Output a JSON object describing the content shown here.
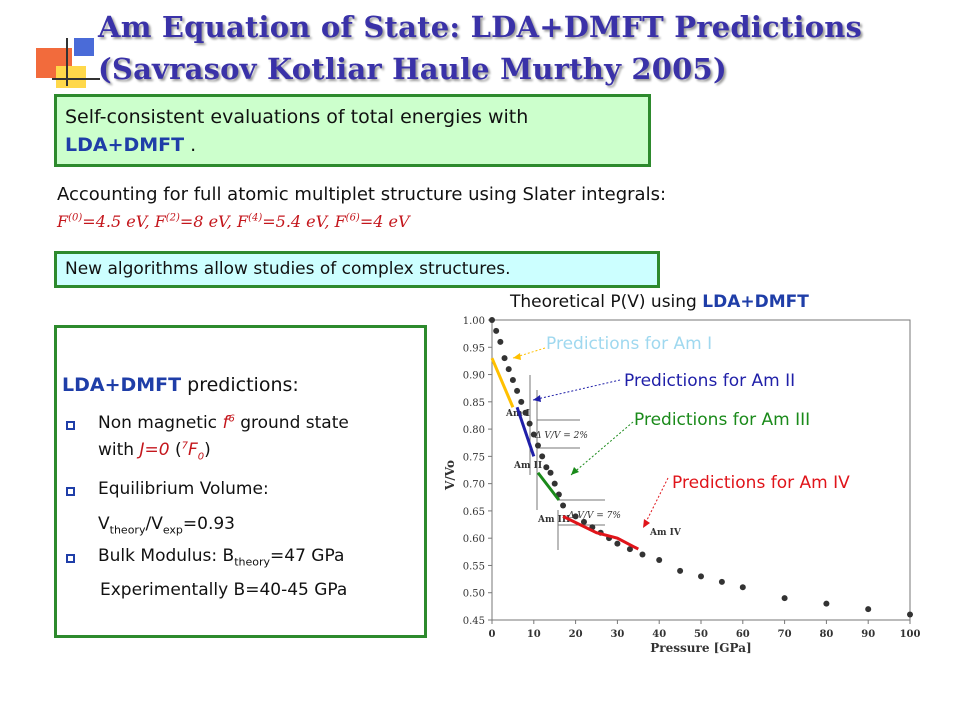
{
  "header": {
    "title_line1": "Am Equation of State: LDA+DMFT Predictions",
    "title_line2": "(Savrasov Kotliar Haule Murthy 2005)"
  },
  "box1": {
    "text": "Self-consistent evaluations of total energies with",
    "bold": "LDA+DMFT",
    "tail": " ."
  },
  "accounting": {
    "text": "Accounting for full atomic multiplet structure using Slater integrals:",
    "f0_sup": "(0)",
    "f0_val": "=4.5 eV, F",
    "f2_sup": "(2)",
    "f2_val": "=8 eV, F",
    "f4_sup": "(4)",
    "f4_val": "=5.4 eV, F",
    "f6_sup": "(6)",
    "f6_val": "=4 eV"
  },
  "box2": {
    "text": "New algorithms allow studies of complex structures."
  },
  "predictions": {
    "heading_bold": "LDA+DMFT",
    "heading_rest": " predictions:",
    "b1_a": "Non magnetic ",
    "b1_f": "f",
    "b1_f_sup": "6",
    "b1_b": " ground state",
    "b1_line2_a": "with ",
    "b1_j": "J=0",
    "b1_paren_open": " (",
    "b1_sup7": "7",
    "b1_F": "F",
    "b1_sub0": "0",
    "b1_paren_close": ")",
    "b2": "Equilibrium Volume:",
    "b2_v1": "V",
    "b2_sub1": "theory",
    "b2_slash": "/V",
    "b2_sub2": "exp",
    "b2_val": "=0.93",
    "b3_a": "Bulk Modulus: B",
    "b3_sub": "theory",
    "b3_val": "=47 GPa",
    "b4": "Experimentally B=40-45 GPa"
  },
  "plot_title": {
    "text": "Theoretical P(V) using ",
    "bold": "LDA+DMFT"
  },
  "callouts": {
    "am1": "Predictions for Am I",
    "am2": "Predictions for Am II",
    "am3": "Predictions for Am III",
    "am4": "Predictions for Am IV"
  },
  "colors": {
    "am1": "#ffc000",
    "am2": "#1f1fa8",
    "am3": "#1a8a1a",
    "am4": "#e0141a",
    "am1_label": "#9fd8ef"
  },
  "chart_data": {
    "type": "scatter",
    "xlabel": "Pressure [GPa]",
    "ylabel": "V/Vo",
    "xlim": [
      0,
      100
    ],
    "ylim": [
      0.45,
      1.0
    ],
    "xticks": [
      "0",
      "10",
      "20",
      "30",
      "40",
      "50",
      "60",
      "70",
      "80",
      "90",
      "100"
    ],
    "yticks": [
      "1.00",
      "0.95",
      "0.90",
      "0.85",
      "0.80",
      "0.75",
      "0.70",
      "0.65",
      "0.60",
      "0.55",
      "0.50",
      "0.45"
    ],
    "phase_labels": [
      "Am I",
      "Am II",
      "Am III",
      "Am IV"
    ],
    "annotations": [
      "Δ V/V = 2%",
      "Δ V/V = 7%"
    ],
    "experimental": {
      "x": [
        0,
        1,
        2,
        3,
        4,
        5,
        6,
        7,
        8,
        9,
        10,
        11,
        12,
        13,
        14,
        15,
        16,
        17,
        20,
        22,
        24,
        26,
        28,
        30,
        33,
        36,
        40,
        45,
        50,
        55,
        60,
        70,
        80,
        90,
        100
      ],
      "y": [
        1.0,
        0.98,
        0.96,
        0.93,
        0.91,
        0.89,
        0.87,
        0.85,
        0.83,
        0.81,
        0.79,
        0.77,
        0.75,
        0.73,
        0.72,
        0.7,
        0.68,
        0.66,
        0.64,
        0.63,
        0.62,
        0.61,
        0.6,
        0.59,
        0.58,
        0.57,
        0.56,
        0.54,
        0.53,
        0.52,
        0.51,
        0.49,
        0.48,
        0.47,
        0.46
      ]
    },
    "series": [
      {
        "x": [
          0,
          5
        ],
        "y": [
          0.93,
          0.84
        ]
      },
      {
        "x": [
          6,
          10
        ],
        "y": [
          0.84,
          0.75
        ]
      },
      {
        "x": [
          11,
          16
        ],
        "y": [
          0.72,
          0.67
        ]
      },
      {
        "x": [
          17,
          25,
          30,
          35
        ],
        "y": [
          0.64,
          0.61,
          0.6,
          0.58
        ]
      }
    ]
  }
}
